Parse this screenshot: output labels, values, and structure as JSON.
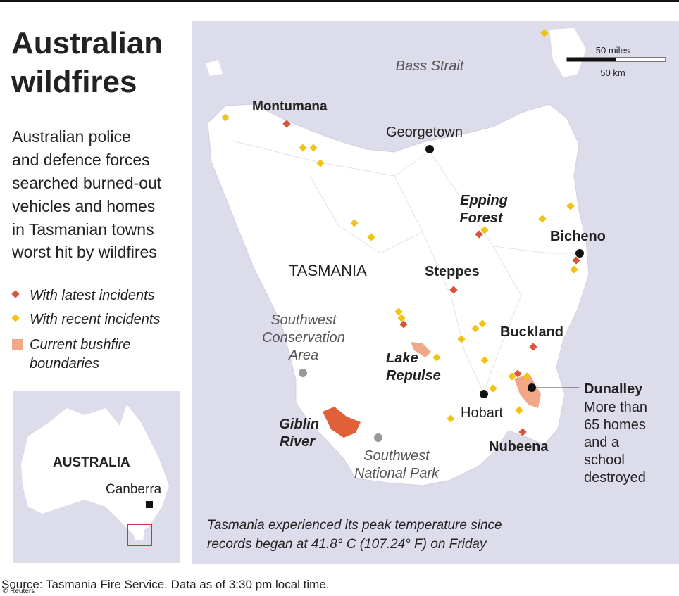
{
  "title": [
    "Australian",
    "wildfires"
  ],
  "description": [
    "Australian police",
    "and defence forces",
    "searched burned-out",
    "vehicles and homes",
    "in Tasmanian towns",
    "worst hit by wildfires"
  ],
  "legend": [
    "With latest incidents",
    "With recent incidents",
    [
      "Current bushfire",
      "boundaries"
    ]
  ],
  "scale": {
    "miles": "50 miles",
    "km": "50 km"
  },
  "inset": {
    "country": "AUSTRALIA",
    "capital": "Canberra"
  },
  "places": {
    "bass_strait": "Bass Strait",
    "montumana": "Montumana",
    "georgetown": "Georgetown",
    "epping_forest": [
      "Epping",
      "Forest"
    ],
    "bicheno": "Bicheno",
    "tasmania": "TASMANIA",
    "steppes": "Steppes",
    "southwest_conservation": [
      "Southwest",
      "Conservation",
      "Area"
    ],
    "buckland": "Buckland",
    "lake_repulse": [
      "Lake",
      "Repulse"
    ],
    "dunalley": "Dunalley",
    "dunalley_note": [
      "More than",
      "65 homes",
      "and a",
      "school",
      "destroyed"
    ],
    "hobart": "Hobart",
    "giblin_river": [
      "Giblin",
      "River"
    ],
    "southwest_np": [
      "Southwest",
      "National Park"
    ],
    "nubeena": "Nubeena"
  },
  "note": [
    "Tasmania experienced its peak temperature since",
    "records began at 41.8° C (107.24° F) on Friday"
  ],
  "source": "Source: Tasmania Fire Service.  Data as of 3:30 pm local time.",
  "credit": "© Reuters"
}
